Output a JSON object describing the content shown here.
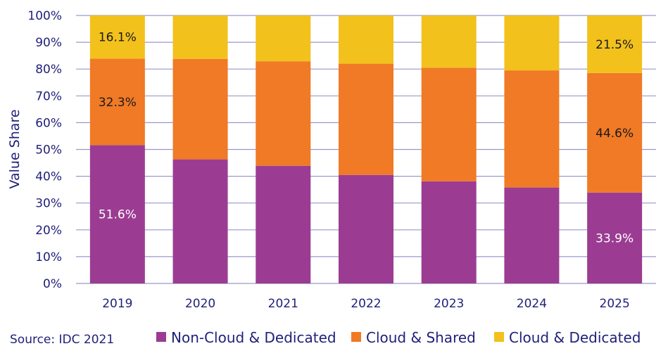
{
  "chart_data": {
    "type": "bar",
    "stacked": true,
    "title": "",
    "xlabel": "",
    "ylabel": "Value  Share",
    "ylim": [
      0,
      100
    ],
    "yticks": [
      "0%",
      "10%",
      "20%",
      "30%",
      "40%",
      "50%",
      "60%",
      "70%",
      "80%",
      "90%",
      "100%"
    ],
    "categories": [
      "2019",
      "2020",
      "2021",
      "2022",
      "2023",
      "2024",
      "2025"
    ],
    "series": [
      {
        "name": "Non-Cloud & Dedicated",
        "color": "#9B3C92",
        "values": [
          51.6,
          46.3,
          43.9,
          40.5,
          38.1,
          35.8,
          33.9
        ]
      },
      {
        "name": "Cloud & Shared",
        "color": "#F07A25",
        "values": [
          32.3,
          37.5,
          39.0,
          41.5,
          42.4,
          43.7,
          44.6
        ]
      },
      {
        "name": "Cloud & Dedicated",
        "color": "#F2C11C",
        "values": [
          16.1,
          16.2,
          17.1,
          18.0,
          19.5,
          20.5,
          21.5
        ]
      }
    ],
    "data_labels": [
      {
        "series": 0,
        "category": 0,
        "text": "51.6%",
        "color": "#ffffff"
      },
      {
        "series": 1,
        "category": 0,
        "text": "32.3%",
        "color": "#1a1a1a"
      },
      {
        "series": 2,
        "category": 0,
        "text": "16.1%",
        "color": "#1a1a1a"
      },
      {
        "series": 0,
        "category": 6,
        "text": "33.9%",
        "color": "#ffffff"
      },
      {
        "series": 1,
        "category": 6,
        "text": "44.6%",
        "color": "#1a1a1a"
      },
      {
        "series": 2,
        "category": 6,
        "text": "21.5%",
        "color": "#1a1a1a"
      }
    ],
    "grid": true,
    "legend": "bottom",
    "axis_text_color": "#1F1F7A",
    "grid_color": "#9999CC"
  },
  "source": "Source: IDC 2021"
}
